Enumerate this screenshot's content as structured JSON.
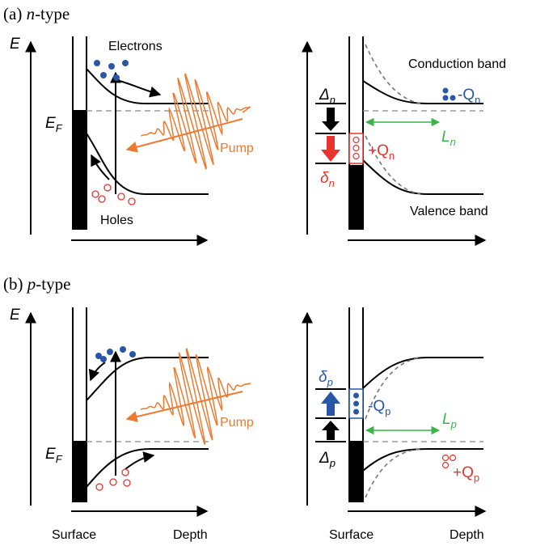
{
  "panel_a": {
    "heading": {
      "label": "(a)",
      "carrier": "n",
      "suffix": "-type"
    },
    "left": {
      "energy": "E",
      "fermi": {
        "main": "E",
        "sub": "F"
      },
      "electrons": "Electrons",
      "holes": "Holes",
      "pump": "Pump"
    },
    "right": {
      "conduction": "Conduction band",
      "valence": "Valence band",
      "minus_q": {
        "main": "-Q",
        "sub": "n"
      },
      "plus_q": {
        "main": "+Q",
        "sub": "n"
      },
      "big_delta": {
        "main": "Δ",
        "sub": "n"
      },
      "small_delta": {
        "main": "δ",
        "sub": "n"
      },
      "length": {
        "main": "L",
        "sub": "n"
      }
    }
  },
  "panel_b": {
    "heading": {
      "label": "(b)",
      "carrier": "p",
      "suffix": "-type"
    },
    "left": {
      "energy": "E",
      "fermi": {
        "main": "E",
        "sub": "F"
      },
      "pump": "Pump"
    },
    "right": {
      "minus_q": {
        "main": "-Q",
        "sub": "p"
      },
      "plus_q": {
        "main": "+Q",
        "sub": "p"
      },
      "big_delta": {
        "main": "Δ",
        "sub": "p"
      },
      "small_delta": {
        "main": "δ",
        "sub": "p"
      },
      "length": {
        "main": "L",
        "sub": "p"
      }
    },
    "axis_labels": {
      "left_surface": "Surface",
      "left_depth": "Depth",
      "right_surface": "Surface",
      "right_depth": "Depth"
    }
  }
}
